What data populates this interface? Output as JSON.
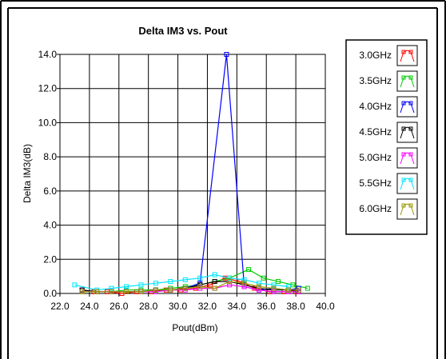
{
  "chart_data": {
    "type": "line",
    "title": "Delta IM3 vs. Pout",
    "xlabel": "Pout(dBm)",
    "ylabel": "Delta IM3(dB)",
    "xlim": [
      22.0,
      40.0
    ],
    "ylim": [
      0.0,
      14.0
    ],
    "x_ticks": [
      "22.0",
      "24.0",
      "26.0",
      "28.0",
      "30.0",
      "32.0",
      "34.0",
      "36.0",
      "38.0",
      "40.0"
    ],
    "y_ticks": [
      "0.0",
      "2.0",
      "4.0",
      "6.0",
      "8.0",
      "10.0",
      "12.0",
      "14.0"
    ],
    "grid": true,
    "legend_position": "right",
    "series": [
      {
        "name": "3.0GHz",
        "color": "#ff0000",
        "points": [
          [
            23.5,
            0.2
          ],
          [
            24.3,
            0.1
          ],
          [
            25.2,
            0.1
          ],
          [
            26.2,
            0.0
          ],
          [
            27.2,
            0.1
          ],
          [
            28.2,
            0.1
          ],
          [
            29.2,
            0.2
          ],
          [
            30.2,
            0.2
          ],
          [
            31.2,
            0.3
          ],
          [
            32.2,
            0.5
          ],
          [
            33.2,
            0.9
          ],
          [
            34.2,
            0.7
          ],
          [
            35.2,
            0.3
          ],
          [
            36.2,
            0.1
          ],
          [
            37.2,
            0.1
          ],
          [
            38.0,
            0.1
          ]
        ]
      },
      {
        "name": "3.5GHz",
        "color": "#00cc00",
        "points": [
          [
            23.5,
            0.1
          ],
          [
            24.5,
            0.1
          ],
          [
            25.5,
            0.1
          ],
          [
            26.5,
            0.2
          ],
          [
            27.5,
            0.2
          ],
          [
            28.5,
            0.2
          ],
          [
            29.5,
            0.3
          ],
          [
            30.5,
            0.4
          ],
          [
            31.5,
            0.5
          ],
          [
            32.5,
            0.7
          ],
          [
            33.5,
            0.9
          ],
          [
            34.8,
            1.4
          ],
          [
            35.8,
            0.9
          ],
          [
            36.8,
            0.7
          ],
          [
            37.8,
            0.5
          ],
          [
            38.8,
            0.3
          ]
        ]
      },
      {
        "name": "4.0GHz",
        "color": "#0000ff",
        "points": [
          [
            23.5,
            0.2
          ],
          [
            24.5,
            0.1
          ],
          [
            25.5,
            0.1
          ],
          [
            26.5,
            0.1
          ],
          [
            27.5,
            0.1
          ],
          [
            28.5,
            0.2
          ],
          [
            29.5,
            0.2
          ],
          [
            30.5,
            0.3
          ],
          [
            31.5,
            0.6
          ],
          [
            33.3,
            14.0
          ],
          [
            34.5,
            0.4
          ],
          [
            35.5,
            0.2
          ],
          [
            36.5,
            0.3
          ],
          [
            37.5,
            0.2
          ],
          [
            38.2,
            0.3
          ]
        ]
      },
      {
        "name": "4.5GHz",
        "color": "#000000",
        "points": [
          [
            23.5,
            0.2
          ],
          [
            24.5,
            0.1
          ],
          [
            25.5,
            0.1
          ],
          [
            26.5,
            0.1
          ],
          [
            27.5,
            0.1
          ],
          [
            28.5,
            0.2
          ],
          [
            29.5,
            0.2
          ],
          [
            30.5,
            0.3
          ],
          [
            31.5,
            0.5
          ],
          [
            32.5,
            0.7
          ],
          [
            33.5,
            0.7
          ],
          [
            34.5,
            0.5
          ],
          [
            35.5,
            0.3
          ],
          [
            36.5,
            0.2
          ],
          [
            37.5,
            0.2
          ],
          [
            38.2,
            0.1
          ]
        ]
      },
      {
        "name": "5.0GHz",
        "color": "#ff00ff",
        "points": [
          [
            23.5,
            0.1
          ],
          [
            24.5,
            0.1
          ],
          [
            25.5,
            0.1
          ],
          [
            26.5,
            0.1
          ],
          [
            27.5,
            0.1
          ],
          [
            28.5,
            0.1
          ],
          [
            29.5,
            0.2
          ],
          [
            30.5,
            0.2
          ],
          [
            31.5,
            0.3
          ],
          [
            32.5,
            0.3
          ],
          [
            33.5,
            0.5
          ],
          [
            34.5,
            0.4
          ],
          [
            35.5,
            0.2
          ],
          [
            36.5,
            0.1
          ],
          [
            37.5,
            0.1
          ],
          [
            38.2,
            0.1
          ]
        ]
      },
      {
        "name": "5.5GHz",
        "color": "#00e5ff",
        "points": [
          [
            23.0,
            0.5
          ],
          [
            24.5,
            0.2
          ],
          [
            25.5,
            0.3
          ],
          [
            26.5,
            0.4
          ],
          [
            27.5,
            0.5
          ],
          [
            28.5,
            0.6
          ],
          [
            29.5,
            0.7
          ],
          [
            30.5,
            0.8
          ],
          [
            31.5,
            0.9
          ],
          [
            32.5,
            1.1
          ],
          [
            33.5,
            0.9
          ],
          [
            34.5,
            0.8
          ],
          [
            35.5,
            0.6
          ],
          [
            36.5,
            0.5
          ],
          [
            37.5,
            0.4
          ]
        ]
      },
      {
        "name": "6.0GHz",
        "color": "#999900",
        "points": [
          [
            23.5,
            0.1
          ],
          [
            24.5,
            0.1
          ],
          [
            25.5,
            0.1
          ],
          [
            26.5,
            0.1
          ],
          [
            27.5,
            0.1
          ],
          [
            28.5,
            0.2
          ],
          [
            29.5,
            0.2
          ],
          [
            30.5,
            0.3
          ],
          [
            31.5,
            0.4
          ],
          [
            32.5,
            0.3
          ],
          [
            33.5,
            0.7
          ],
          [
            34.5,
            0.6
          ],
          [
            35.5,
            0.4
          ],
          [
            36.5,
            0.3
          ],
          [
            37.5,
            0.2
          ],
          [
            38.2,
            0.2
          ]
        ]
      }
    ]
  }
}
